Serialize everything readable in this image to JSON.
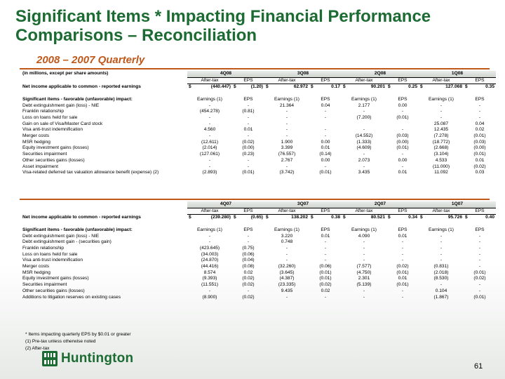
{
  "title": "Significant Items * Impacting Financial Performance Comparisons – Reconciliation",
  "subtitle": "2008 – 2007 Quarterly",
  "units_note": "(in millions, except per share amounts)",
  "col_after_tax": "After-tax",
  "col_eps": "EPS",
  "col_earnings": "Earnings (1)",
  "currency_symbol": "$",
  "net_income_label": "Net income applicable to common - reported earnings",
  "sig_items_label": "Significant items - favorable (unfavorable) impact:",
  "table_2008": {
    "quarters": [
      "4Q08",
      "3Q08",
      "2Q08",
      "1Q08"
    ],
    "net_income": [
      [
        "(440.447)",
        "(1.20)"
      ],
      [
        "62.972",
        "0.17"
      ],
      [
        "90.201",
        "0.25"
      ],
      [
        "127.068",
        "0.35"
      ]
    ],
    "rows": [
      {
        "label": "Debt extinguishment gain (loss) - NIE",
        "v": [
          "-",
          "-",
          "21.364",
          "0.04",
          "2.177",
          "0.00",
          "-",
          "-"
        ]
      },
      {
        "label": "Franklin relationship",
        "v": [
          "(454.278)",
          "(0.81)",
          "-",
          "-",
          "-",
          "-",
          "-",
          "-"
        ]
      },
      {
        "label": "Loss on loans held for sale",
        "v": [
          "-",
          "-",
          "-",
          "-",
          "(7.200)",
          "(0.01)",
          "-",
          "-"
        ]
      },
      {
        "label": "Gain on sale of Visa/Master Card stock",
        "v": [
          "-",
          "-",
          "-",
          "",
          "",
          "",
          "25.087",
          "0.04"
        ]
      },
      {
        "label": "Visa anti-trust indemnification",
        "v": [
          "4.560",
          "0.01",
          "-",
          "-",
          "-",
          "-",
          "12.435",
          "0.02"
        ]
      },
      {
        "label": "Merger costs",
        "v": [
          "-",
          "-",
          "-",
          "-",
          "(14.552)",
          "(0.03)",
          "(7.278)",
          "(0.01)"
        ]
      },
      {
        "label": "MSR hedging",
        "v": [
          "(12.611)",
          "(0.02)",
          "1.900",
          "0.00",
          "(1.333)",
          "(0.00)",
          "(18.772)",
          "(0.03)"
        ]
      },
      {
        "label": "Equity investment gains (losses)",
        "v": [
          "(2.014)",
          "(0.00)",
          "3.399",
          "0.01",
          "(4.609)",
          "(0.01)",
          "(2.668)",
          "(0.00)"
        ]
      },
      {
        "label": "Securities impairment",
        "v": [
          "(127.061)",
          "(0.23)",
          "(76.557)",
          "(0.14)",
          "-",
          "-",
          "(3.104)",
          "(0.01)"
        ]
      },
      {
        "label": "Other securities gains (losses)",
        "v": [
          "-",
          "-",
          "2.767",
          "0.00",
          "2.073",
          "0.00",
          "4.533",
          "0.01"
        ]
      },
      {
        "label": "Asset impairment",
        "v": [
          "-",
          "-",
          "-",
          "-",
          "-",
          "-",
          "(11.000)",
          "(0.02)"
        ]
      },
      {
        "label": "Visa-related deferred tax valuation allowance benefit (expense) (2)",
        "v": [
          "(2.893)",
          "(0.01)",
          "(3.742)",
          "(0.01)",
          "3.435",
          "0.01",
          "11.092",
          "0.03"
        ]
      }
    ]
  },
  "table_2007": {
    "quarters": [
      "4Q07",
      "3Q07",
      "2Q07",
      "1Q07"
    ],
    "net_income": [
      [
        "(239.280)",
        "(0.65)"
      ],
      [
        "138.202",
        "0.38"
      ],
      [
        "80.521",
        "0.34"
      ],
      [
        "95.726",
        "0.40"
      ]
    ],
    "rows": [
      {
        "label": "Debt extinguishment gain (loss) - NIE",
        "v": [
          "-",
          "-",
          "3.220",
          "0.01",
          "4.090",
          "0.01",
          "-",
          "-"
        ]
      },
      {
        "label": "Debt extinguishment gain - (securities gain)",
        "v": [
          "-",
          "-",
          "0.748",
          "-",
          "-",
          "-",
          "-",
          "-"
        ]
      },
      {
        "label": "Franklin relationship",
        "v": [
          "(423.645)",
          "(0.75)",
          "-",
          "-",
          "-",
          "-",
          "-",
          "-"
        ]
      },
      {
        "label": "Loss on loans held for sale",
        "v": [
          "(34.003)",
          "(0.06)",
          "-",
          "-",
          "-",
          "-",
          "-",
          "-"
        ]
      },
      {
        "label": "Visa anti-trust indemnification",
        "v": [
          "(24.870)",
          "(0.04)",
          "-",
          "-",
          "-",
          "-",
          "-",
          "-"
        ]
      },
      {
        "label": "Merger costs",
        "v": [
          "(44.416)",
          "(0.08)",
          "(32.260)",
          "(0.06)",
          "(7.577)",
          "(0.02)",
          "(0.831)",
          "-"
        ]
      },
      {
        "label": "MSR hedging",
        "v": [
          "8.574",
          "0.02",
          "(3.645)",
          "(0.01)",
          "(4.750)",
          "(0.01)",
          "(2.018)",
          "(0.01)"
        ]
      },
      {
        "label": "Equity investment gains (losses)",
        "v": [
          "(9.393)",
          "(0.02)",
          "(4.387)",
          "(0.01)",
          "2.301",
          "0.01",
          "(8.530)",
          "(0.02)"
        ]
      },
      {
        "label": "Securities impairment",
        "v": [
          "(11.551)",
          "(0.02)",
          "(23.335)",
          "(0.02)",
          "(5.139)",
          "(0.01)",
          "-",
          "-"
        ]
      },
      {
        "label": "Other securities gains (losses)",
        "v": [
          "-",
          "-",
          "9.435",
          "0.02",
          "-",
          "-",
          "0.104",
          "-"
        ]
      },
      {
        "label": "Additions to litigation reserves on existing cases",
        "v": [
          "(8.900)",
          "(0.02)",
          "-",
          "-",
          "-",
          "-",
          "(1.867)",
          "(0.01)"
        ]
      }
    ]
  },
  "footnotes": [
    "* Items impacting quarterly EPS by $0.01 or greater",
    "(1) Pre-tax unless otherwise noted",
    "(2) After-tax"
  ],
  "logo_text": "Huntington",
  "page_number": "61",
  "colors": {
    "title_green": "#1c6b32",
    "accent_orange": "#c0581b"
  }
}
